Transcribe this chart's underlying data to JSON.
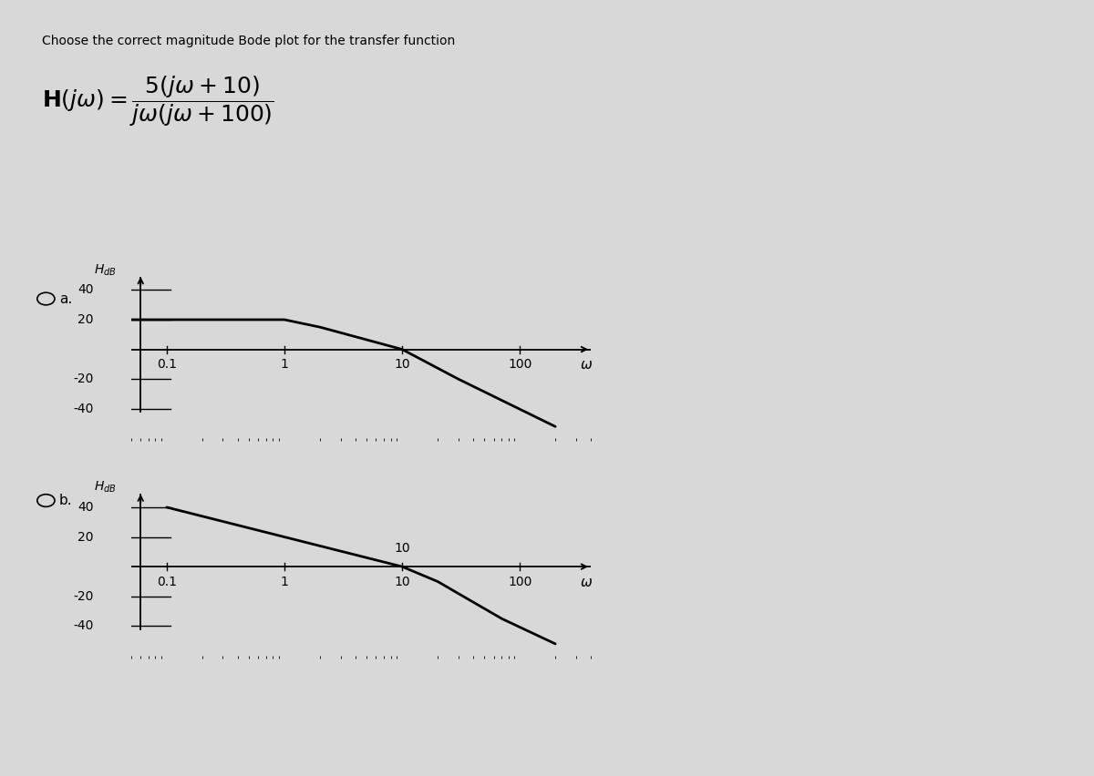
{
  "title": "Choose the correct magnitude Bode plot for the transfer function",
  "background_color": "#d8d8d8",
  "plot_line_color": "#000000",
  "axis_color": "#000000",
  "yticks": [
    -40,
    -20,
    20,
    40
  ],
  "xtick_labels_a": [
    "0.1",
    "1",
    "10",
    "100"
  ],
  "xtick_vals_a": [
    0.1,
    1.0,
    10.0,
    100.0
  ],
  "xtick_labels_b": [
    "0.1",
    "1",
    "10",
    "100"
  ],
  "xtick_vals_b": [
    0.1,
    1.0,
    10.0,
    100.0
  ],
  "omega_label": "ω",
  "plot_a_pts_x": [
    0.05,
    1.0,
    2.0,
    10.0,
    30.0,
    200.0
  ],
  "plot_a_pts_y": [
    20.0,
    20.0,
    15.0,
    0.0,
    -20.0,
    -52.0
  ],
  "plot_b_pts_x": [
    0.1,
    1.0,
    10.0,
    20.0,
    70.0,
    200.0
  ],
  "plot_b_pts_y": [
    40.0,
    20.0,
    0.0,
    -10.0,
    -35.0,
    -52.0
  ],
  "xmin": 0.05,
  "xmax": 400.0,
  "ymin": -60,
  "ymax": 55,
  "font_size_title": 10,
  "font_size_tick": 10,
  "font_size_option": 11,
  "font_size_tf": 18,
  "font_size_ylabel": 10
}
